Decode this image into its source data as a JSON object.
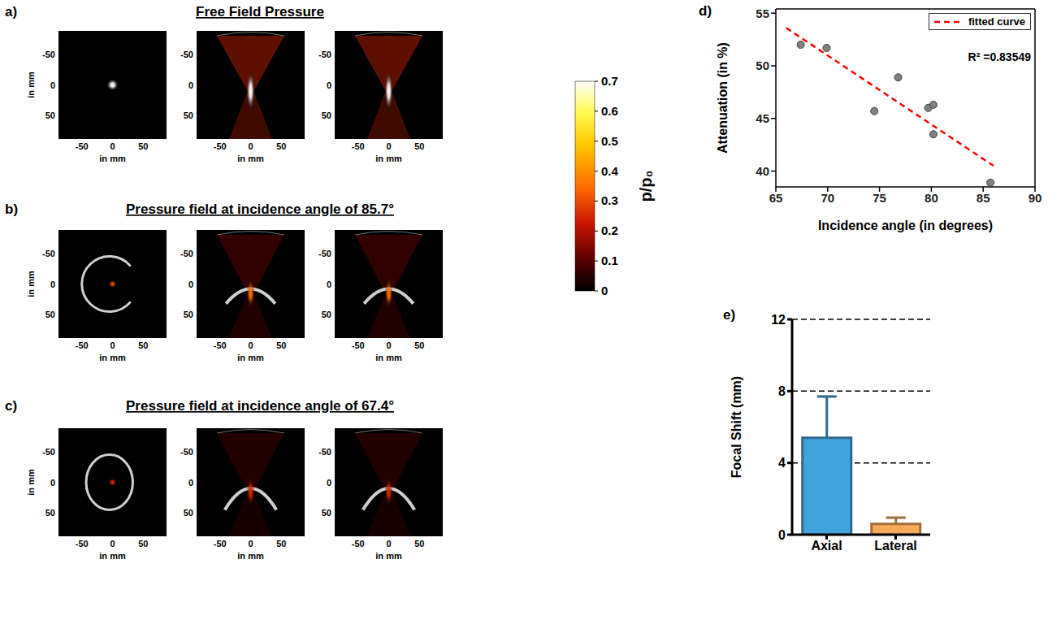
{
  "figure": {
    "image_panels": [
      {
        "letter": "a)",
        "title": "Free Field Pressure",
        "images": [
          {
            "xlabel": "in mm",
            "ylabel": "in mm",
            "xlim": [
              -88,
              88
            ],
            "ylim": [
              -88,
              88
            ],
            "xticks": [
              -50,
              0,
              50
            ],
            "yticks": [
              -50,
              0,
              50
            ],
            "peak": 0.7
          },
          {
            "xlabel": "in mm",
            "xlim": [
              -88,
              88
            ],
            "ylim": [
              -88,
              88
            ],
            "xticks": [
              -50,
              0,
              50
            ],
            "yticks": [
              -50,
              0,
              50
            ],
            "peak": 0.7
          },
          {
            "xlabel": "in mm",
            "xlim": [
              -88,
              88
            ],
            "ylim": [
              -88,
              88
            ],
            "xticks": [
              -50,
              0,
              50
            ],
            "yticks": [
              -50,
              0,
              50
            ],
            "peak": 0.7
          }
        ]
      },
      {
        "letter": "b)",
        "title": "Pressure field at incidence angle of 85.7°",
        "images": [
          {
            "xlabel": "in mm",
            "ylabel": "in mm",
            "xlim": [
              -88,
              88
            ],
            "ylim": [
              -88,
              88
            ],
            "xticks": [
              -50,
              0,
              50
            ],
            "yticks": [
              -50,
              0,
              50
            ],
            "peak": 0.3
          },
          {
            "xlabel": "in mm",
            "xlim": [
              -88,
              88
            ],
            "ylim": [
              -88,
              88
            ],
            "xticks": [
              -50,
              0,
              50
            ],
            "yticks": [
              -50,
              0,
              50
            ],
            "peak": 0.35
          },
          {
            "xlabel": "in mm",
            "xlim": [
              -88,
              88
            ],
            "ylim": [
              -88,
              88
            ],
            "xticks": [
              -50,
              0,
              50
            ],
            "yticks": [
              -50,
              0,
              50
            ],
            "peak": 0.35
          }
        ]
      },
      {
        "letter": "c)",
        "title": "Pressure field at incidence angle of 67.4°",
        "images": [
          {
            "xlabel": "in mm",
            "ylabel": "in mm",
            "xlim": [
              -88,
              88
            ],
            "ylim": [
              -88,
              88
            ],
            "xticks": [
              -50,
              0,
              50
            ],
            "yticks": [
              -50,
              0,
              50
            ],
            "peak": 0.25
          },
          {
            "xlabel": "in mm",
            "xlim": [
              -88,
              88
            ],
            "ylim": [
              -88,
              88
            ],
            "xticks": [
              -50,
              0,
              50
            ],
            "yticks": [
              -50,
              0,
              50
            ],
            "peak": 0.25
          },
          {
            "xlabel": "in mm",
            "xlim": [
              -88,
              88
            ],
            "ylim": [
              -88,
              88
            ],
            "xticks": [
              -50,
              0,
              50
            ],
            "yticks": [
              -50,
              0,
              50
            ],
            "peak": 0.25
          }
        ]
      }
    ],
    "colorbar": {
      "label": "p/p₀",
      "range": [
        0,
        0.7
      ],
      "ticks": [
        0,
        0.1,
        0.2,
        0.3,
        0.4,
        0.5,
        0.6,
        0.7
      ]
    }
  },
  "chart_data": [
    {
      "letter": "d)",
      "type": "scatter",
      "xlabel": "Incidence angle (in degrees)",
      "ylabel": "Attenuation (in %)",
      "x": [
        67.4,
        69.9,
        74.5,
        76.8,
        79.7,
        80.2,
        80.2,
        85.7
      ],
      "values": [
        52.0,
        51.7,
        45.7,
        48.9,
        46.0,
        46.3,
        43.5,
        38.9
      ],
      "color": "#808080",
      "marker": "circle",
      "xlim": [
        65,
        90
      ],
      "xticks": [
        65,
        70,
        75,
        80,
        85,
        90
      ],
      "ylim": [
        38.5,
        55.4
      ],
      "yticks": [
        40,
        45,
        50,
        55
      ],
      "legend": "top-right",
      "fit": {
        "name": "fitted curve",
        "color": "#ff0000",
        "line_style": "dashed",
        "x": [
          66,
          86
        ],
        "values": [
          53.6,
          40.5
        ]
      },
      "annotations": [
        "R² =0.83549"
      ]
    },
    {
      "letter": "e)",
      "type": "bar",
      "ylabel": "Focal Shift (mm)",
      "categories": [
        "Axial",
        "Lateral"
      ],
      "values": [
        5.4,
        0.6
      ],
      "errors": [
        2.3,
        0.35
      ],
      "colors": [
        "#43a3dc",
        "#f7aa59"
      ],
      "ylim": [
        0,
        12
      ],
      "yticks": [
        0,
        4,
        8,
        12
      ],
      "grid": true
    }
  ]
}
